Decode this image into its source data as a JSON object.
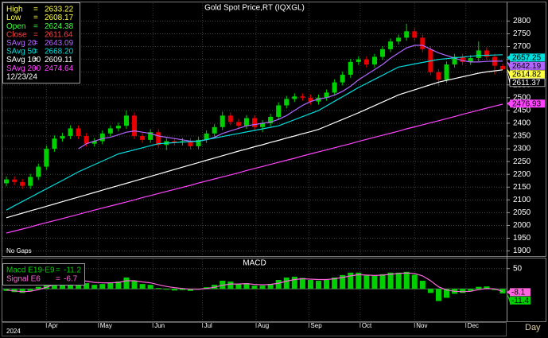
{
  "chart_data": [
    {
      "type": "candlestick",
      "title": "Gold Spot Price,RT (IQXGL)",
      "note": "No Gaps",
      "open": [
        2165,
        2180,
        2170,
        2155,
        2190,
        2230,
        2300,
        2340,
        2350,
        2380,
        2350,
        2320,
        2330,
        2360,
        2380,
        2390,
        2430,
        2350,
        2335,
        2365,
        2315,
        2330,
        2325,
        2330,
        2310,
        2335,
        2360,
        2385,
        2430,
        2405,
        2390,
        2420,
        2385,
        2400,
        2425,
        2470,
        2495,
        2505,
        2500,
        2485,
        2500,
        2520,
        2560,
        2590,
        2640,
        2650,
        2630,
        2660,
        2690,
        2720,
        2735,
        2760,
        2735,
        2690,
        2600,
        2570,
        2630,
        2660,
        2640,
        2655,
        2685,
        2660,
        2624.38
      ],
      "high": [
        2192,
        2192,
        2182,
        2202,
        2242,
        2312,
        2352,
        2362,
        2392,
        2392,
        2362,
        2342,
        2372,
        2392,
        2402,
        2450,
        2442,
        2362,
        2377,
        2377,
        2342,
        2342,
        2342,
        2342,
        2347,
        2372,
        2397,
        2445,
        2442,
        2417,
        2432,
        2432,
        2412,
        2437,
        2482,
        2507,
        2517,
        2517,
        2512,
        2512,
        2532,
        2572,
        2602,
        2652,
        2662,
        2662,
        2672,
        2702,
        2732,
        2747,
        2790,
        2772,
        2747,
        2702,
        2612,
        2642,
        2672,
        2672,
        2667,
        2720,
        2697,
        2672,
        2633.22
      ],
      "low": [
        2153,
        2158,
        2143,
        2143,
        2178,
        2218,
        2288,
        2328,
        2338,
        2338,
        2308,
        2308,
        2318,
        2348,
        2368,
        2378,
        2338,
        2323,
        2323,
        2303,
        2295,
        2313,
        2313,
        2298,
        2298,
        2323,
        2348,
        2373,
        2393,
        2378,
        2378,
        2373,
        2365,
        2388,
        2413,
        2458,
        2483,
        2488,
        2473,
        2473,
        2488,
        2508,
        2548,
        2578,
        2628,
        2618,
        2618,
        2648,
        2678,
        2708,
        2723,
        2723,
        2678,
        2588,
        2545,
        2558,
        2618,
        2628,
        2628,
        2643,
        2648,
        2590,
        2608.17
      ],
      "close": [
        2180,
        2170,
        2155,
        2190,
        2230,
        2300,
        2340,
        2350,
        2380,
        2350,
        2320,
        2330,
        2360,
        2380,
        2390,
        2430,
        2350,
        2335,
        2365,
        2315,
        2330,
        2325,
        2330,
        2310,
        2335,
        2360,
        2385,
        2430,
        2405,
        2390,
        2420,
        2385,
        2400,
        2425,
        2470,
        2495,
        2505,
        2500,
        2485,
        2500,
        2520,
        2560,
        2590,
        2640,
        2650,
        2630,
        2660,
        2690,
        2720,
        2735,
        2760,
        2735,
        2690,
        2600,
        2570,
        2630,
        2660,
        2640,
        2655,
        2685,
        2660,
        2625,
        2611.64
      ],
      "up_color": "#00d000",
      "down_color": "#e80000",
      "series": [
        {
          "name": "SAvg 20",
          "color": "#b366ff",
          "legend_value": 2643.09,
          "values": [
            null,
            null,
            null,
            null,
            null,
            null,
            null,
            null,
            null,
            2300,
            2320,
            2330,
            2340,
            2345,
            2355,
            2365,
            2370,
            2365,
            2360,
            2350,
            2345,
            2340,
            2335,
            2330,
            2330,
            2335,
            2345,
            2360,
            2370,
            2380,
            2390,
            2395,
            2400,
            2405,
            2415,
            2430,
            2450,
            2470,
            2485,
            2495,
            2500,
            2510,
            2525,
            2545,
            2570,
            2590,
            2610,
            2630,
            2655,
            2675,
            2695,
            2705,
            2705,
            2690,
            2675,
            2665,
            2655,
            2645,
            2640,
            2640,
            2642,
            2643,
            2643.09
          ]
        },
        {
          "name": "SAvg 50",
          "color": "#00dede",
          "legend_value": {
            "value": 2668.2,
            "label": "2668.20"
          },
          "values": [
            2060,
            2077,
            2094,
            2110,
            2127,
            2143,
            2160,
            2176,
            2193,
            2210,
            2224,
            2238,
            2252,
            2266,
            2280,
            2288,
            2296,
            2304,
            2312,
            2320,
            2322,
            2324,
            2326,
            2328,
            2330,
            2336,
            2342,
            2348,
            2354,
            2360,
            2366,
            2372,
            2378,
            2384,
            2390,
            2402,
            2414,
            2426,
            2438,
            2450,
            2468,
            2486,
            2504,
            2522,
            2540,
            2556,
            2572,
            2588,
            2604,
            2620,
            2626,
            2632,
            2638,
            2644,
            2650,
            2653,
            2656,
            2659,
            2662,
            2665,
            2666,
            2667,
            2668.2
          ]
        },
        {
          "name": "SAvg 100",
          "color": "#ffffff",
          "legend_value": 2609.11,
          "values": [
            2030,
            2039,
            2048,
            2057,
            2066,
            2075,
            2084,
            2093,
            2102,
            2111,
            2120,
            2129,
            2138,
            2147,
            2156,
            2165,
            2174,
            2183,
            2192,
            2201,
            2210,
            2219,
            2228,
            2237,
            2246,
            2255,
            2264,
            2273,
            2282,
            2291,
            2299,
            2308,
            2316,
            2325,
            2333,
            2342,
            2350,
            2359,
            2367,
            2376,
            2389,
            2402,
            2415,
            2428,
            2441,
            2455,
            2469,
            2483,
            2497,
            2511,
            2521,
            2531,
            2541,
            2551,
            2561,
            2568,
            2575,
            2582,
            2589,
            2596,
            2601,
            2605,
            2609.11
          ]
        },
        {
          "name": "SAvg 200",
          "color": "#ff44ff",
          "legend_value": 2474.64,
          "values": [
            1970,
            1978,
            1986,
            1994,
            2003,
            2011,
            2019,
            2027,
            2035,
            2043,
            2052,
            2060,
            2068,
            2076,
            2084,
            2092,
            2100,
            2109,
            2117,
            2125,
            2133,
            2141,
            2149,
            2157,
            2166,
            2174,
            2182,
            2190,
            2198,
            2206,
            2215,
            2223,
            2231,
            2239,
            2247,
            2255,
            2263,
            2272,
            2280,
            2288,
            2296,
            2304,
            2312,
            2320,
            2329,
            2337,
            2345,
            2353,
            2361,
            2369,
            2378,
            2386,
            2394,
            2402,
            2410,
            2418,
            2426,
            2435,
            2443,
            2451,
            2459,
            2467,
            2474.64
          ]
        }
      ],
      "legend": [
        {
          "name": "High",
          "value": 2633.22,
          "color": "#ffff44"
        },
        {
          "name": "Low",
          "value": 2608.17,
          "color": "#ffff44"
        },
        {
          "name": "Open",
          "value": 2624.38,
          "color": "#44ff44"
        },
        {
          "name": "Close",
          "value": 2611.64,
          "color": "#ff4444"
        }
      ],
      "legend_separator": "=",
      "date": "12/23/24",
      "price_markers": [
        {
          "value": 2657.25,
          "color": "#00dede",
          "text_color": "#000000"
        },
        {
          "value": 2642.19,
          "color": "#b366ff",
          "text_color": "#000000"
        },
        {
          "value": 2614.82,
          "color": "#ffff44",
          "text_color": "#000000"
        },
        {
          "value": 2611.37,
          "color": "#000000",
          "text_color": "#ffffff"
        },
        {
          "value": 2476.93,
          "color": "#ff44ff",
          "text_color": "#000000"
        }
      ],
      "xlim": [
        -0.5,
        62.5
      ],
      "xticks": [
        {
          "value": 5,
          "label": "Apr"
        },
        {
          "value": 11.5,
          "label": "May"
        },
        {
          "value": 18.3,
          "label": "Jun"
        },
        {
          "value": 24.5,
          "label": "Jul"
        },
        {
          "value": 31.2,
          "label": "Aug"
        },
        {
          "value": 37.8,
          "label": "Sep"
        },
        {
          "value": 44.2,
          "label": "Oct"
        },
        {
          "value": 51,
          "label": "Nov"
        },
        {
          "value": 57.4,
          "label": "Dec"
        }
      ],
      "year": "2024",
      "x_label": "Day",
      "ylim": [
        1880,
        2870
      ],
      "yticks": [
        1900,
        1950,
        2000,
        2050,
        2100,
        2150,
        2200,
        2250,
        2300,
        2350,
        2400,
        2450,
        2500,
        2550,
        2600,
        2650,
        2700,
        2750,
        2800
      ],
      "grid": true
    },
    {
      "type": "macd",
      "title": "MACD",
      "series": [
        {
          "name": "Macd  E19-E9",
          "color": "#00d000",
          "style": "bar",
          "legend_value": -11.2,
          "values": [
            -5,
            -8,
            -10,
            -5,
            5,
            15,
            22,
            25,
            27,
            22,
            14,
            10,
            12,
            15,
            18,
            28,
            20,
            12,
            10,
            2,
            -2,
            -4,
            -3,
            -5,
            -2,
            4,
            10,
            20,
            18,
            12,
            14,
            8,
            8,
            12,
            22,
            28,
            30,
            27,
            22,
            20,
            22,
            28,
            34,
            40,
            40,
            33,
            32,
            36,
            40,
            40,
            42,
            35,
            20,
            -10,
            -30,
            -22,
            -12,
            -10,
            -5,
            5,
            6,
            -3,
            -11.2
          ]
        },
        {
          "name": "Signal  E6",
          "color": "#ff66dd",
          "style": "line",
          "legend_value": -6.7,
          "values": [
            -3,
            -5,
            -7,
            -6,
            -2,
            4,
            11,
            16,
            20,
            21,
            19,
            16,
            15,
            15,
            16,
            20,
            20,
            17,
            15,
            10,
            6,
            3,
            1,
            -1,
            -1,
            1,
            4,
            9,
            12,
            12,
            13,
            11,
            10,
            11,
            14,
            19,
            23,
            25,
            24,
            23,
            23,
            25,
            28,
            32,
            35,
            34,
            33,
            34,
            36,
            38,
            39,
            38,
            32,
            20,
            5,
            -3,
            -6,
            -7,
            -6,
            -2,
            1,
            0,
            -6.7
          ]
        }
      ],
      "legend_separator": "=",
      "last_markers": [
        {
          "value": -8.1,
          "color": "#ff66dd"
        },
        {
          "value": -11.4,
          "color": "#00d000"
        }
      ],
      "ylim": [
        -80,
        73
      ],
      "yticks": [
        50
      ],
      "grid": true
    }
  ]
}
